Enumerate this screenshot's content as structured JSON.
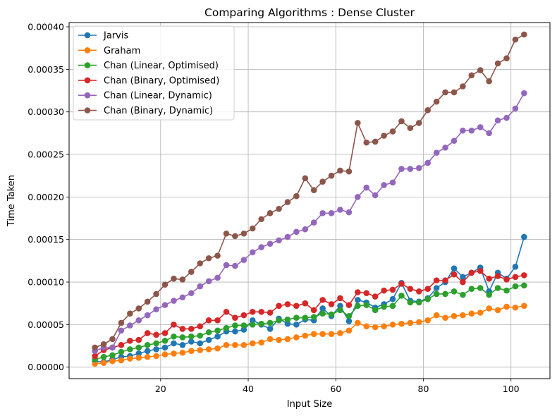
{
  "chart_data": {
    "type": "line",
    "title": "Comparing Algorithms : Dense Cluster",
    "xlabel": "Input Size",
    "ylabel": "Time Taken",
    "xlim": [
      -0.9,
      108.9
    ],
    "ylim": [
      -1.35e-05,
      0.000405
    ],
    "x_ticks": [
      20,
      40,
      60,
      80,
      100
    ],
    "x_tick_labels": [
      "20",
      "40",
      "60",
      "80",
      "100"
    ],
    "y_ticks": [
      0,
      5e-05,
      0.0001,
      0.00015,
      0.0002,
      0.00025,
      0.0003,
      0.00035,
      0.0004
    ],
    "y_tick_labels": [
      "0.00000",
      "0.00005",
      "0.00010",
      "0.00015",
      "0.00020",
      "0.00025",
      "0.00030",
      "0.00035",
      "0.00040"
    ],
    "grid": true,
    "legend_position": "top-left",
    "x": [
      5,
      7,
      9,
      11,
      13,
      15,
      17,
      19,
      21,
      23,
      25,
      27,
      29,
      31,
      33,
      35,
      37,
      39,
      41,
      43,
      45,
      47,
      49,
      51,
      53,
      55,
      57,
      59,
      61,
      63,
      65,
      67,
      69,
      71,
      73,
      75,
      77,
      79,
      81,
      83,
      85,
      87,
      89,
      91,
      93,
      95,
      97,
      99,
      101,
      103
    ],
    "series": [
      {
        "name": "Jarvis",
        "color": "#1f77b4",
        "values": [
          7e-06,
          6e-06,
          9e-06,
          1.2e-05,
          1.3e-05,
          1.6e-05,
          1.9e-05,
          2.1e-05,
          2.3e-05,
          2.8e-05,
          2.6e-05,
          3e-05,
          2.8e-05,
          3.2e-05,
          3.6e-05,
          4.2e-05,
          4.2e-05,
          4.4e-05,
          5.5e-05,
          5e-05,
          4.5e-05,
          5.7e-05,
          5.1e-05,
          5e-05,
          5.6e-05,
          5.5e-05,
          6.9e-05,
          6e-05,
          7.2e-05,
          5.4e-05,
          7.9e-05,
          7.6e-05,
          7e-05,
          7.4e-05,
          8e-05,
          9.9e-05,
          7.8e-05,
          7.7e-05,
          8.1e-05,
          9.3e-05,
          0.0001,
          0.000116,
          0.000106,
          0.000111,
          0.000117,
          8.9e-05,
          0.000111,
          0.000104,
          0.000118,
          0.000153
        ]
      },
      {
        "name": "Graham",
        "color": "#ff7f0e",
        "values": [
          4e-06,
          5e-06,
          7e-06,
          8e-06,
          1e-05,
          1.1e-05,
          1.2e-05,
          1.3e-05,
          1.5e-05,
          1.6e-05,
          1.7e-05,
          1.9e-05,
          2e-05,
          2.1e-05,
          2.2e-05,
          2.6e-05,
          2.6e-05,
          2.6e-05,
          2.8e-05,
          2.9e-05,
          3.3e-05,
          3.2e-05,
          3.3e-05,
          3.5e-05,
          3.7e-05,
          3.9e-05,
          3.9e-05,
          3.9e-05,
          4e-05,
          4.3e-05,
          5.2e-05,
          4.8e-05,
          4.7e-05,
          4.8e-05,
          5e-05,
          5.1e-05,
          5.2e-05,
          5.3e-05,
          5.5e-05,
          6.1e-05,
          5.8e-05,
          6e-05,
          6.1e-05,
          6.3e-05,
          6.4e-05,
          6.9e-05,
          6.7e-05,
          7.1e-05,
          7e-05,
          7.2e-05
        ]
      },
      {
        "name": "Chan (Linear, Optimised)",
        "color": "#2ca02c",
        "values": [
          9e-06,
          1.2e-05,
          1.4e-05,
          1.8e-05,
          2.1e-05,
          2.3e-05,
          2.6e-05,
          2.8e-05,
          3.1e-05,
          3.6e-05,
          3.5e-05,
          3.6e-05,
          3.7e-05,
          4.1e-05,
          4.3e-05,
          4.6e-05,
          4.9e-05,
          4.9e-05,
          5e-05,
          5.1e-05,
          5.2e-05,
          5.5e-05,
          5.6e-05,
          5.8e-05,
          5.8e-05,
          5.9e-05,
          6.3e-05,
          6.2e-05,
          6.7e-05,
          6e-05,
          7.2e-05,
          7.3e-05,
          6.7e-05,
          7.1e-05,
          7.2e-05,
          8.4e-05,
          7.6e-05,
          7.6e-05,
          8e-05,
          8.6e-05,
          8.6e-05,
          8.9e-05,
          8.5e-05,
          9.2e-05,
          9.3e-05,
          8.5e-05,
          9.3e-05,
          9e-05,
          9.5e-05,
          9.6e-05
        ]
      },
      {
        "name": "Chan (Binary, Optimised)",
        "color": "#d62728",
        "values": [
          1.3e-05,
          2e-05,
          2.3e-05,
          2.6e-05,
          3.1e-05,
          3.2e-05,
          4e-05,
          3.8e-05,
          4e-05,
          5e-05,
          4.5e-05,
          4.5e-05,
          4.8e-05,
          5.5e-05,
          5.5e-05,
          6.5e-05,
          5.8e-05,
          6.1e-05,
          6.5e-05,
          6.5e-05,
          6.4e-05,
          7.2e-05,
          7.4e-05,
          7.2e-05,
          7.5e-05,
          6.7e-05,
          7.9e-05,
          7.4e-05,
          8.1e-05,
          7.3e-05,
          8.8e-05,
          8.7e-05,
          8.3e-05,
          9e-05,
          9.1e-05,
          9.8e-05,
          9.2e-05,
          8.9e-05,
          9.2e-05,
          0.000102,
          0.000102,
          0.000109,
          0.0001,
          0.000111,
          0.000113,
          0.000104,
          0.000107,
          0.000103,
          0.000106,
          0.000108
        ]
      },
      {
        "name": "Chan (Linear, Dynamic)",
        "color": "#9467bd",
        "values": [
          1.9e-05,
          2.3e-05,
          2.3e-05,
          4.3e-05,
          4.9e-05,
          5.5e-05,
          6.1e-05,
          6.8e-05,
          7.3e-05,
          7.8e-05,
          8.2e-05,
          8.7e-05,
          9.5e-05,
          0.000101,
          0.000105,
          0.00012,
          0.000119,
          0.000126,
          0.000135,
          0.000141,
          0.000145,
          0.000149,
          0.000153,
          0.000159,
          0.000162,
          0.00017,
          0.000181,
          0.000181,
          0.000185,
          0.000182,
          0.0002,
          0.000211,
          0.000202,
          0.000214,
          0.000217,
          0.000233,
          0.000233,
          0.000234,
          0.00024,
          0.000252,
          0.000258,
          0.000266,
          0.000278,
          0.000278,
          0.000282,
          0.000275,
          0.00029,
          0.000293,
          0.000304,
          0.000322
        ]
      },
      {
        "name": "Chan (Binary, Dynamic)",
        "color": "#8c564b",
        "values": [
          2.3e-05,
          2.7e-05,
          3.3e-05,
          5.2e-05,
          6.3e-05,
          6.9e-05,
          7.7e-05,
          8.6e-05,
          9.7e-05,
          0.000104,
          0.000103,
          0.000112,
          0.000122,
          0.000128,
          0.000131,
          0.000157,
          0.000154,
          0.000157,
          0.000163,
          0.000174,
          0.000181,
          0.000186,
          0.000194,
          0.000201,
          0.000222,
          0.000208,
          0.000218,
          0.000225,
          0.000231,
          0.00023,
          0.000287,
          0.000264,
          0.000265,
          0.000272,
          0.000277,
          0.000289,
          0.000281,
          0.000287,
          0.000302,
          0.000312,
          0.000323,
          0.000323,
          0.00033,
          0.000343,
          0.000349,
          0.000336,
          0.000357,
          0.000363,
          0.000385,
          0.000391
        ]
      }
    ]
  }
}
